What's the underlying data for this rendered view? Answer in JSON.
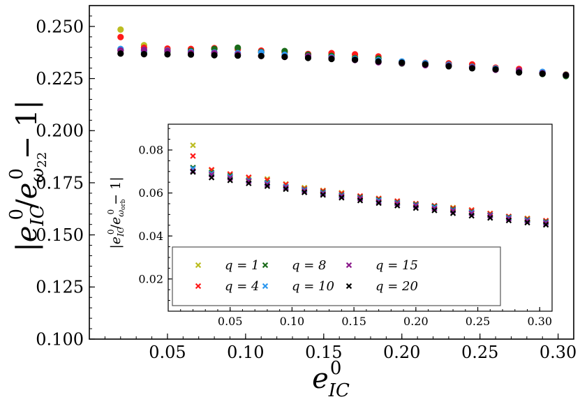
{
  "chart_data": [
    {
      "type": "scatter",
      "marker": "circle",
      "ylabel": "|e⁰_IC / e⁰_ω22 − 1|",
      "xlabel": "e⁰_IC",
      "xlim": [
        0.0,
        0.31
      ],
      "ylim": [
        0.1,
        0.26
      ],
      "x_ticks": [
        "0.05",
        "0.10",
        "0.15",
        "0.20",
        "0.25",
        "0.30"
      ],
      "y_ticks": [
        "0.100",
        "0.125",
        "0.150",
        "0.175",
        "0.200",
        "0.225",
        "0.250"
      ],
      "grid": false,
      "x": [
        0.02,
        0.035,
        0.05,
        0.065,
        0.08,
        0.095,
        0.11,
        0.125,
        0.14,
        0.155,
        0.17,
        0.185,
        0.2,
        0.215,
        0.23,
        0.245,
        0.26,
        0.275,
        0.29,
        0.305
      ],
      "series": [
        {
          "color": "#bcbd22",
          "values": [
            0.2485,
            0.241,
            0.239,
            0.2385,
            0.2395,
            0.2395,
            0.2375,
            0.2375,
            0.2365,
            0.2365,
            0.2355,
            0.2345,
            0.233,
            0.2315,
            0.2315,
            0.2305,
            0.2295,
            0.229,
            0.2275,
            0.227
          ]
        },
        {
          "color": "#ff1a1a",
          "values": [
            0.2449,
            0.2398,
            0.2394,
            0.2392,
            0.2396,
            0.239,
            0.2384,
            0.2378,
            0.2368,
            0.2372,
            0.2366,
            0.2356,
            0.233,
            0.2325,
            0.2323,
            0.2318,
            0.2302,
            0.2296,
            0.2278,
            0.2266
          ]
        },
        {
          "color": "#1a6b1a",
          "values": [
            0.2385,
            0.2376,
            0.2379,
            0.2383,
            0.2392,
            0.2398,
            0.2378,
            0.2382,
            0.2364,
            0.2359,
            0.2348,
            0.2346,
            0.2322,
            0.2322,
            0.2317,
            0.2307,
            0.2297,
            0.2282,
            0.2272,
            0.2262
          ]
        },
        {
          "color": "#2c97ef",
          "values": [
            0.2392,
            0.2383,
            0.2384,
            0.2378,
            0.2375,
            0.2372,
            0.2375,
            0.2364,
            0.2356,
            0.2352,
            0.2344,
            0.2338,
            0.2332,
            0.2324,
            0.2316,
            0.2306,
            0.2298,
            0.2282,
            0.2282,
            0.2268
          ]
        },
        {
          "color": "#8b1a8b",
          "values": [
            0.2385,
            0.2388,
            0.2382,
            0.2373,
            0.2372,
            0.2366,
            0.2358,
            0.2354,
            0.2357,
            0.2348,
            0.2339,
            0.2328,
            0.2324,
            0.2314,
            0.2312,
            0.2303,
            0.2292,
            0.2289,
            0.2276,
            0.2268
          ]
        },
        {
          "color": "#000000",
          "values": [
            0.237,
            0.2367,
            0.2366,
            0.2365,
            0.2362,
            0.236,
            0.2358,
            0.2354,
            0.2349,
            0.2344,
            0.234,
            0.2332,
            0.2326,
            0.2318,
            0.2309,
            0.2299,
            0.2294,
            0.2279,
            0.2273,
            0.2266
          ]
        }
      ]
    },
    {
      "type": "scatter",
      "marker": "x",
      "ylabel": "|e⁰_IC / e⁰_ωorb − 1|",
      "xlim": [
        0.0,
        0.31
      ],
      "ylim": [
        0.005,
        0.092
      ],
      "x_ticks": [
        "0.05",
        "0.10",
        "0.15",
        "0.20",
        "0.25",
        "0.30"
      ],
      "y_ticks": [
        "0.02",
        "0.04",
        "0.06",
        "0.08"
      ],
      "legend_position": "lower left",
      "x": [
        0.02,
        0.035,
        0.05,
        0.065,
        0.08,
        0.095,
        0.11,
        0.125,
        0.14,
        0.155,
        0.17,
        0.185,
        0.2,
        0.215,
        0.23,
        0.245,
        0.26,
        0.275,
        0.29,
        0.305
      ],
      "series": [
        {
          "name": "q = 1",
          "color": "#bcbd22",
          "values": [
            0.0822,
            0.0705,
            0.0688,
            0.067,
            0.0665,
            0.0642,
            0.0625,
            0.0612,
            0.0601,
            0.0585,
            0.0575,
            0.0562,
            0.055,
            0.054,
            0.0532,
            0.0521,
            0.0505,
            0.049,
            0.0482,
            0.0471
          ]
        },
        {
          "name": "q = 4",
          "color": "#ff1a1a",
          "values": [
            0.0772,
            0.0708,
            0.0688,
            0.0673,
            0.066,
            0.064,
            0.062,
            0.061,
            0.0598,
            0.0586,
            0.0574,
            0.0562,
            0.055,
            0.0541,
            0.0529,
            0.052,
            0.0504,
            0.0491,
            0.048,
            0.0471
          ]
        },
        {
          "name": "q = 8",
          "color": "#1a6b1a",
          "values": [
            0.0718,
            0.0695,
            0.068,
            0.066,
            0.0648,
            0.063,
            0.0616,
            0.0604,
            0.0591,
            0.058,
            0.0569,
            0.0556,
            0.0546,
            0.0537,
            0.0524,
            0.0512,
            0.0498,
            0.0487,
            0.0476,
            0.0466
          ]
        },
        {
          "name": "q = 10",
          "color": "#2c97ef",
          "values": [
            0.0713,
            0.069,
            0.0675,
            0.0658,
            0.0645,
            0.0629,
            0.0614,
            0.06,
            0.0588,
            0.0576,
            0.0565,
            0.0553,
            0.0543,
            0.0533,
            0.052,
            0.0509,
            0.0496,
            0.0484,
            0.0473,
            0.0463
          ]
        },
        {
          "name": "q = 15",
          "color": "#8b1a8b",
          "values": [
            0.0702,
            0.0685,
            0.067,
            0.0655,
            0.064,
            0.0625,
            0.061,
            0.0597,
            0.0585,
            0.0574,
            0.056,
            0.055,
            0.054,
            0.0528,
            0.0517,
            0.0505,
            0.0494,
            0.048,
            0.047,
            0.046
          ]
        },
        {
          "name": "q = 20",
          "color": "#000000",
          "values": [
            0.0698,
            0.0672,
            0.0659,
            0.0645,
            0.0632,
            0.0618,
            0.0603,
            0.0591,
            0.0578,
            0.0565,
            0.0553,
            0.0541,
            0.053,
            0.0519,
            0.0506,
            0.0494,
            0.0484,
            0.0472,
            0.0462,
            0.0452
          ]
        }
      ]
    }
  ]
}
